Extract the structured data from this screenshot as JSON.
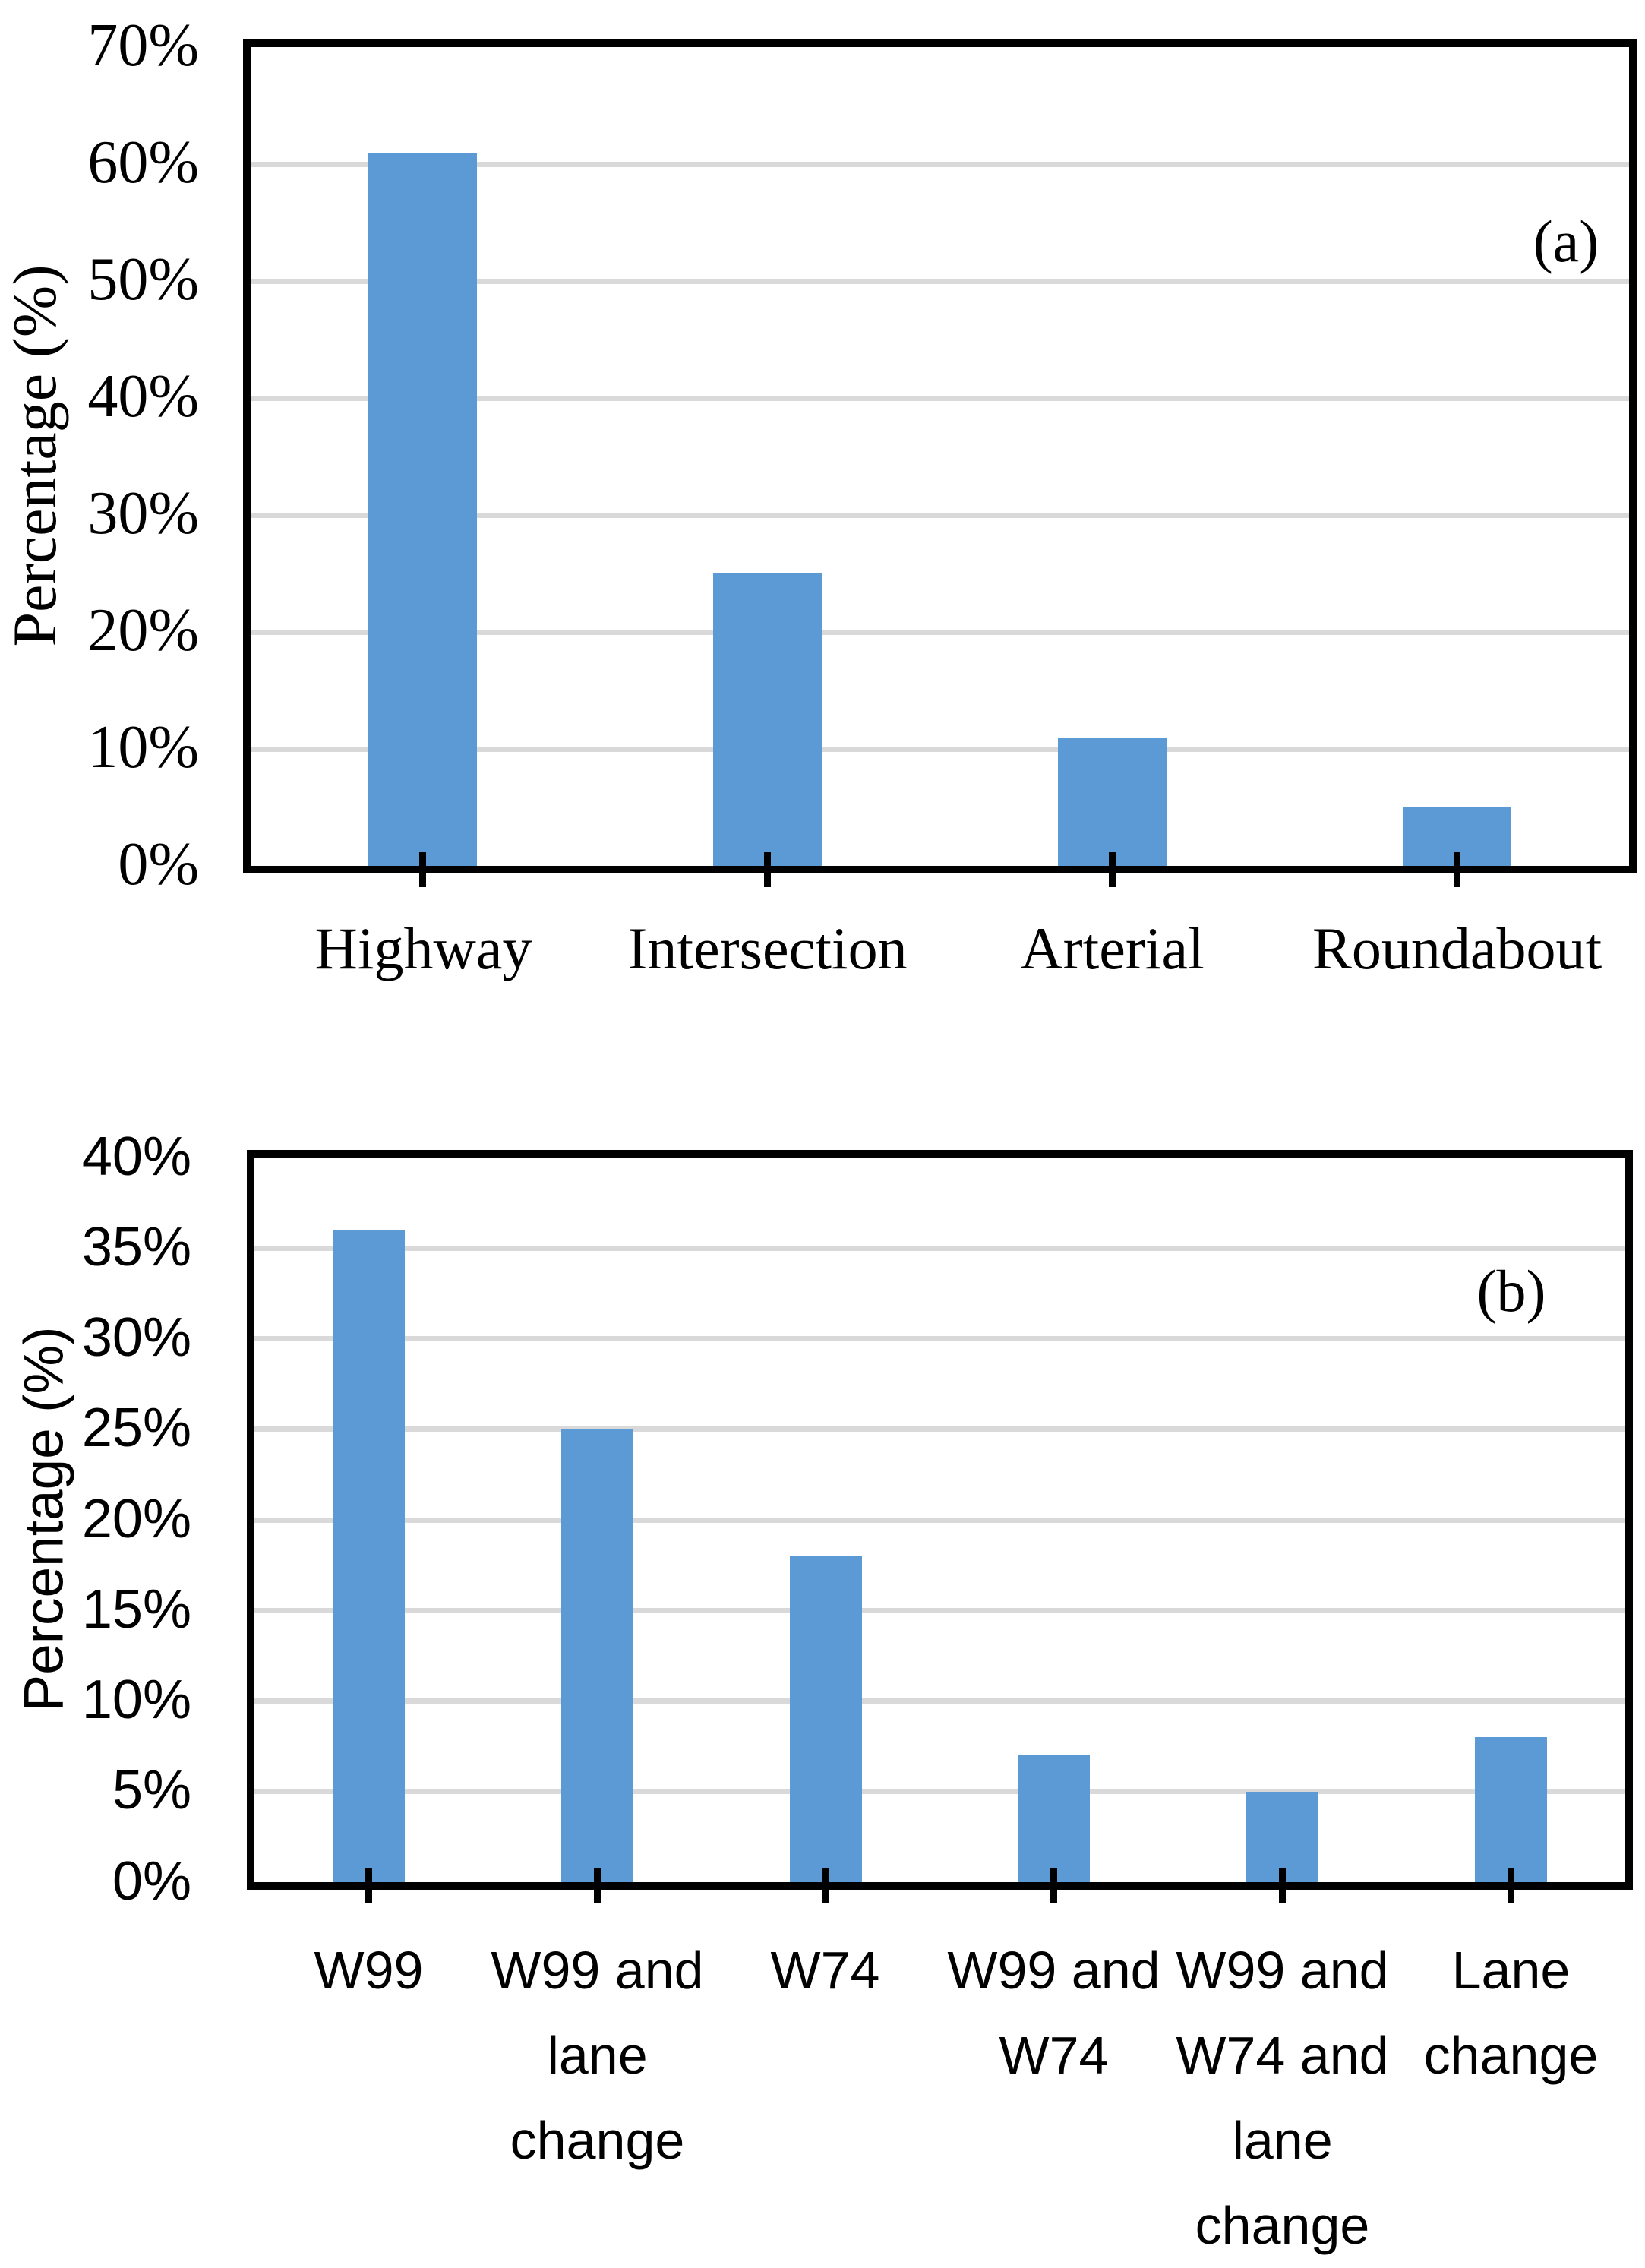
{
  "figure": {
    "background": "#ffffff",
    "bar_color": "#5B9AD5",
    "gridline_color": "#D9D9D9",
    "axis_color": "#000000"
  },
  "chart_data": [
    {
      "id": "a",
      "type": "bar",
      "annotation": "(a)",
      "title": "",
      "xlabel": "",
      "ylabel": "Percentage (%)",
      "ylim": [
        0,
        70
      ],
      "ytick_step": 10,
      "yticks": {
        "values": [
          0,
          10,
          20,
          30,
          40,
          50,
          60,
          70
        ],
        "labels": [
          "0%",
          "10%",
          "20%",
          "30%",
          "40%",
          "50%",
          "60%",
          "70%"
        ]
      },
      "categories": [
        "Highway",
        "Intersection",
        "Arterial",
        "Roundabout"
      ],
      "category_lines": [
        [
          "Highway"
        ],
        [
          "Intersection"
        ],
        [
          "Arterial"
        ],
        [
          "Roundabout"
        ]
      ],
      "values": [
        61,
        25,
        11,
        5
      ],
      "value_unit": "%",
      "bar_color": "#5B9AD5",
      "grid": true,
      "legend": "none"
    },
    {
      "id": "b",
      "type": "bar",
      "annotation": "(b)",
      "title": "",
      "xlabel": "",
      "ylabel": "Percentage (%)",
      "ylim": [
        0,
        40
      ],
      "ytick_step": 5,
      "yticks": {
        "values": [
          0,
          5,
          10,
          15,
          20,
          25,
          30,
          35,
          40
        ],
        "labels": [
          "0%",
          "5%",
          "10%",
          "15%",
          "20%",
          "25%",
          "30%",
          "35%",
          "40%"
        ]
      },
      "categories": [
        "W99",
        "W99 and lane change",
        "W74",
        "W99 and W74",
        "W99 and W74 and lane change",
        "Lane change"
      ],
      "category_lines": [
        [
          "W99"
        ],
        [
          "W99 and",
          "lane",
          "change"
        ],
        [
          "W74"
        ],
        [
          "W99 and",
          "W74"
        ],
        [
          "W99 and",
          "W74 and",
          "lane",
          "change"
        ],
        [
          "Lane",
          "change"
        ]
      ],
      "values": [
        36,
        25,
        18,
        7,
        5,
        8
      ],
      "value_unit": "%",
      "bar_color": "#5B9AD5",
      "grid": true,
      "legend": "none"
    }
  ]
}
